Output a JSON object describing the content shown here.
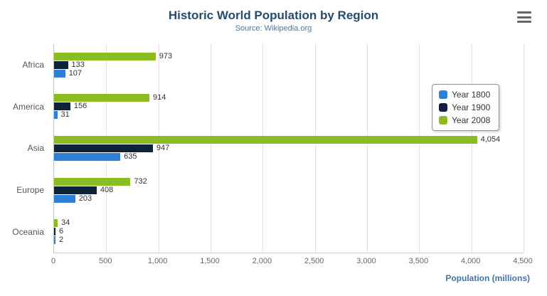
{
  "header": {
    "title": "Historic World Population by Region",
    "subtitle": "Source: Wikipedia.org"
  },
  "chart_data": {
    "type": "bar",
    "orientation": "horizontal",
    "title": "Historic World Population by Region",
    "subtitle": "Source: Wikipedia.org",
    "categories": [
      "Africa",
      "America",
      "Asia",
      "Europe",
      "Oceania"
    ],
    "series": [
      {
        "name": "Year 1800",
        "color": "#2f7ed8",
        "values": [
          107,
          31,
          635,
          203,
          2
        ]
      },
      {
        "name": "Year 1900",
        "color": "#0d233a",
        "values": [
          133,
          156,
          947,
          408,
          6
        ]
      },
      {
        "name": "Year 2008",
        "color": "#8bbc21",
        "values": [
          973,
          914,
          4054,
          732,
          34
        ]
      }
    ],
    "display_order_top_to_bottom": [
      "Year 2008",
      "Year 1900",
      "Year 1800"
    ],
    "xlabel": "Population (millions)",
    "ylabel": "",
    "xlim": [
      0,
      4500
    ],
    "xticks": [
      0,
      500,
      1000,
      1500,
      2000,
      2500,
      3000,
      3500,
      4000,
      4500
    ],
    "xtick_labels": [
      "0",
      "500",
      "1,000",
      "1,500",
      "2,000",
      "2,500",
      "3,000",
      "3,500",
      "4,000",
      "4,500"
    ],
    "grid": true,
    "legend_position": "right",
    "data_labels": true
  },
  "colors": {
    "title": "#274b6d",
    "subtitle": "#4d759e",
    "axis_label": "#4572a7",
    "gridline": "#e3e3e3"
  }
}
